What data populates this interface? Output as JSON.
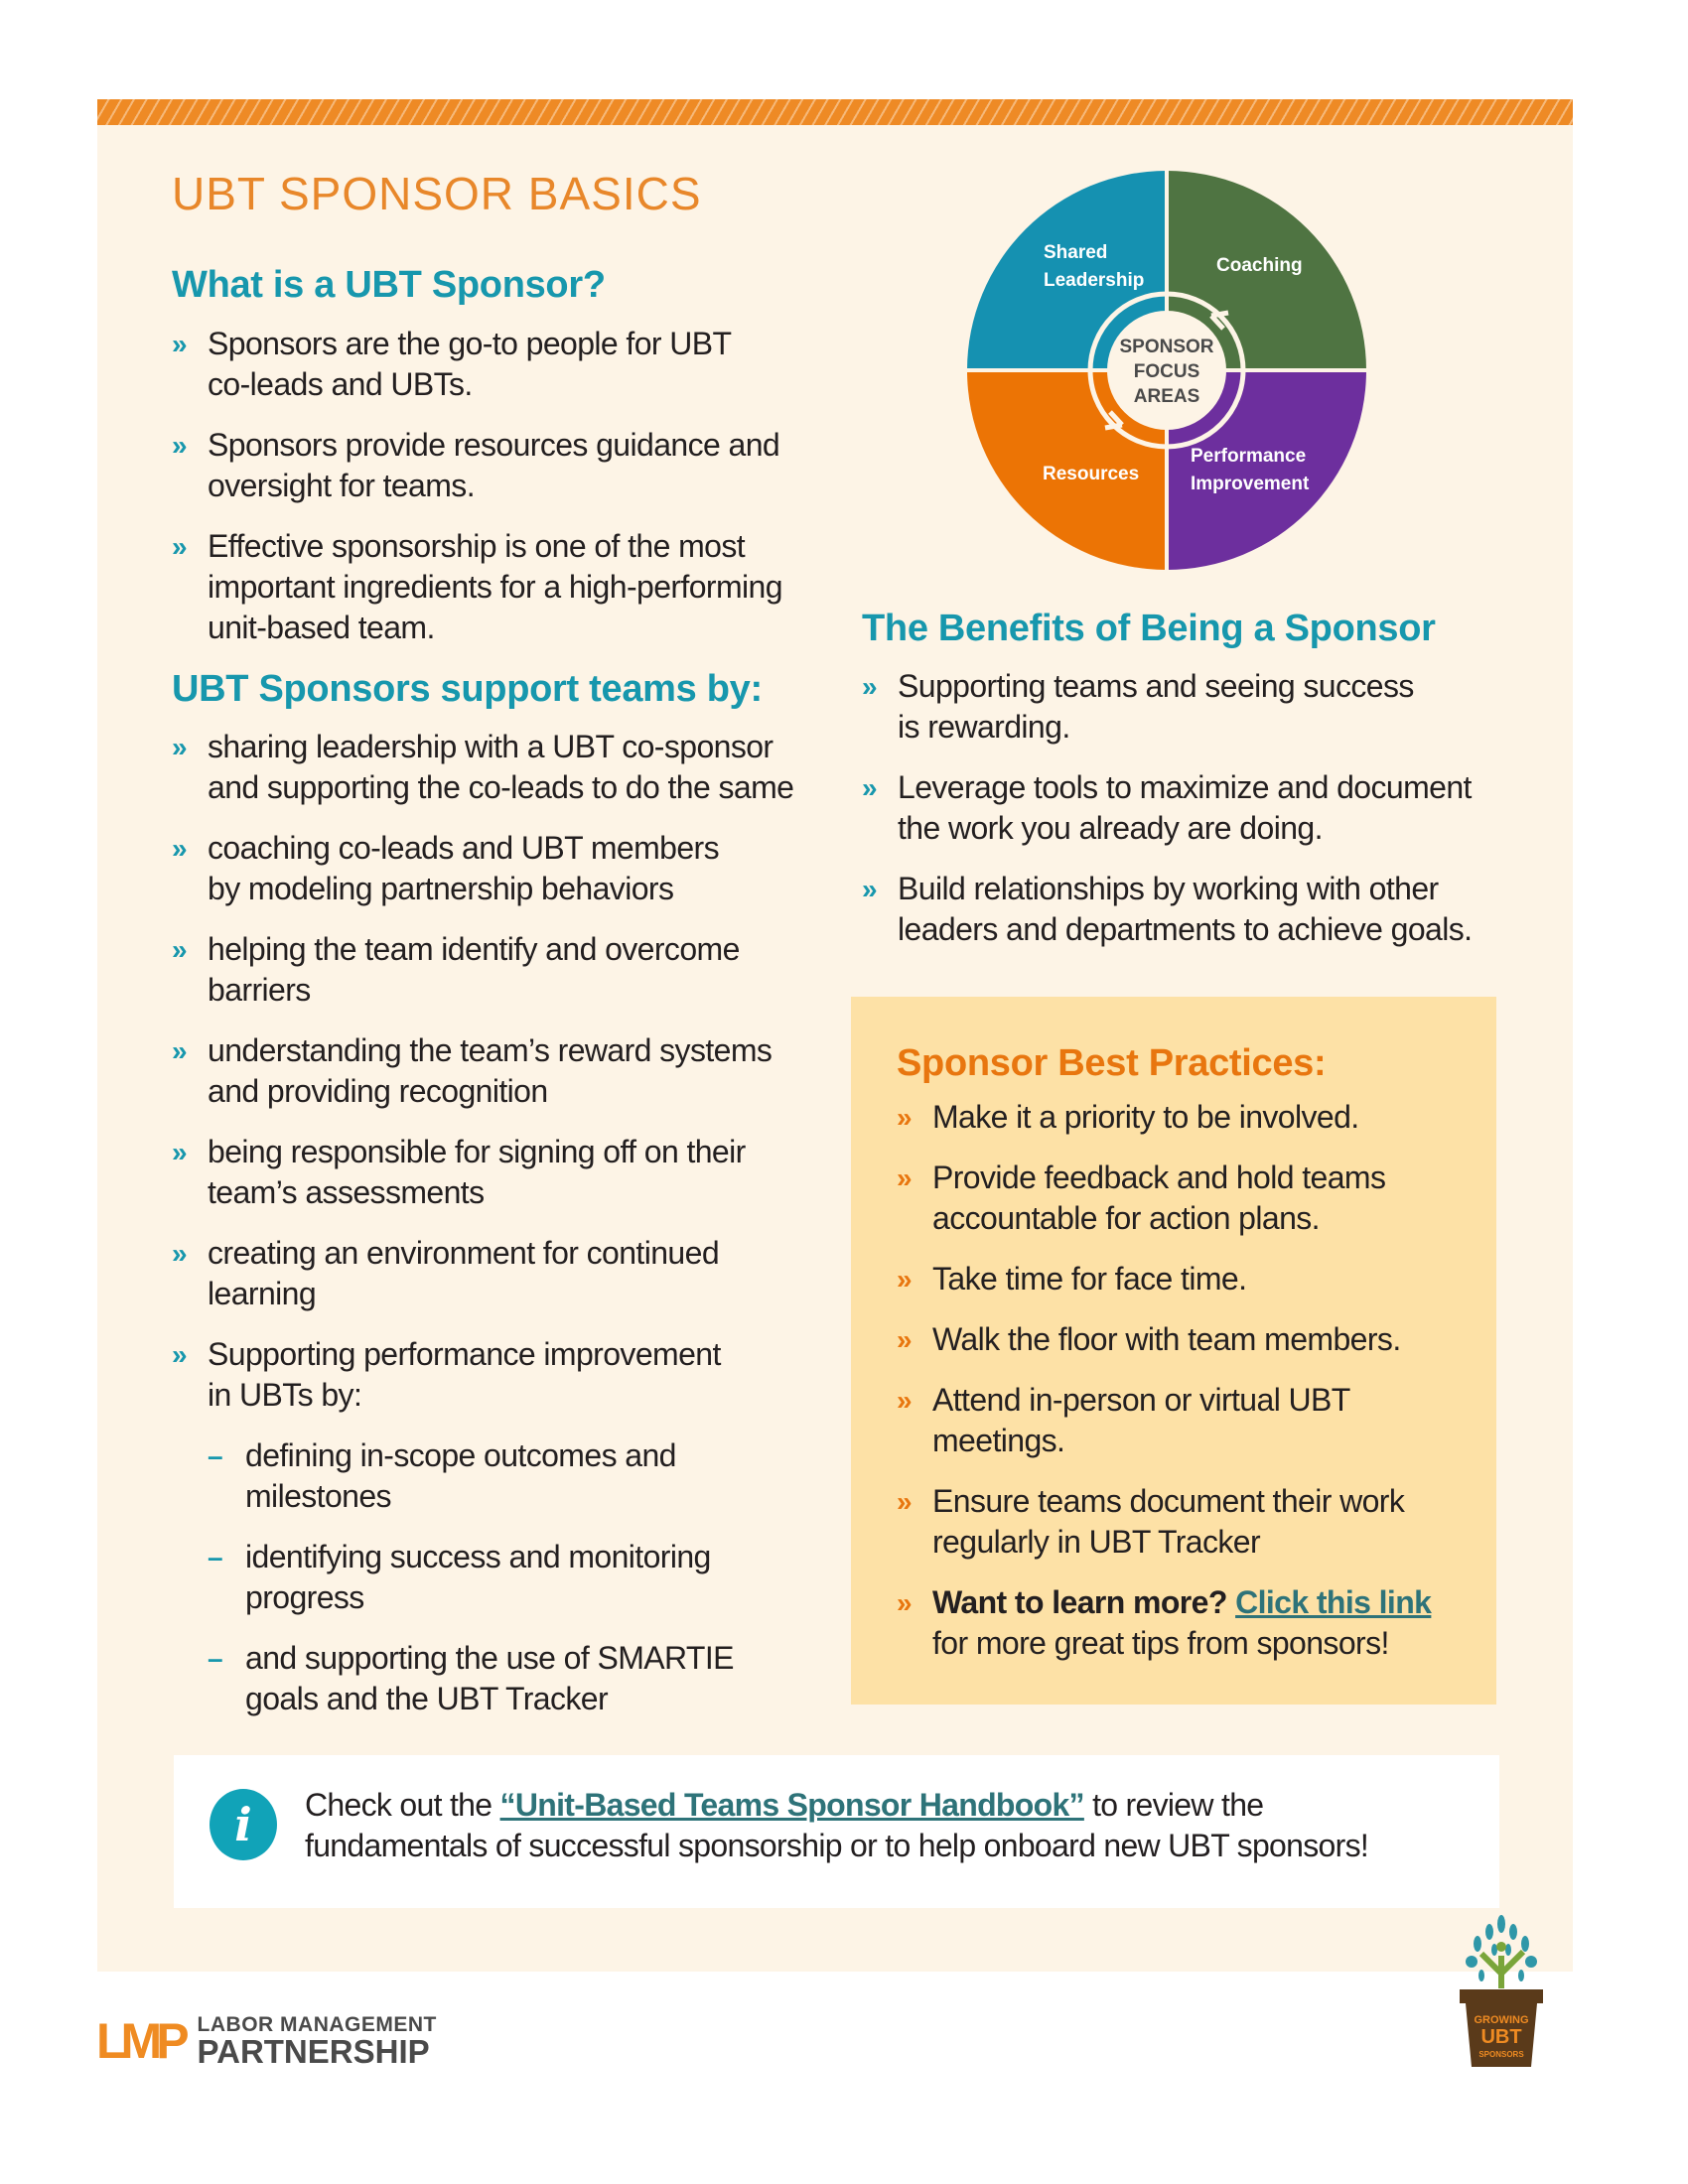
{
  "title": "UBT SPONSOR BASICS",
  "what": {
    "heading": "What is a UBT Sponsor?",
    "items": [
      "Sponsors are the go-to people for UBT\nco-leads and UBTs.",
      "Sponsors provide resources guidance and\noversight for teams.",
      "Effective sponsorship is one of the most\nimportant ingredients for a high-performing\nunit-based team."
    ]
  },
  "support": {
    "heading": "UBT Sponsors support teams by:",
    "items": [
      "sharing leadership with a UBT co-sponsor\nand supporting the co-leads to do the same",
      "coaching co-leads and UBT members\nby modeling partnership behaviors",
      "helping the team identify and overcome\nbarriers",
      "understanding the team’s reward systems\nand providing recognition",
      "being responsible for signing off on their\nteam’s assessments",
      "creating an environment for continued\nlearning",
      "Supporting performance improvement\nin UBTs by:"
    ],
    "sub_items": [
      "defining in-scope outcomes and\nmilestones",
      "identifying success and monitoring\nprogress",
      "and supporting the use of SMARTIE\ngoals and the UBT Tracker"
    ]
  },
  "focus_diagram": {
    "center": [
      "SPONSOR",
      "FOCUS",
      "AREAS"
    ],
    "quadrants": [
      {
        "label": [
          "Shared",
          "Leadership"
        ],
        "color": "#1591b1"
      },
      {
        "label": [
          "Coaching"
        ],
        "color": "#4f7442"
      },
      {
        "label": [
          "Resources"
        ],
        "color": "#ec7405"
      },
      {
        "label": [
          "Performance",
          "Improvement"
        ],
        "color": "#6d2f9e"
      }
    ]
  },
  "benefits": {
    "heading": "The Benefits of Being a Sponsor",
    "items": [
      "Supporting teams and seeing success\nis rewarding.",
      "Leverage tools to maximize and document\nthe work you already are doing.",
      "Build relationships by working with other\nleaders and departments to achieve goals."
    ]
  },
  "best_practices": {
    "heading": "Sponsor Best Practices:",
    "items": [
      "Make it a priority to be involved.",
      "Provide feedback and hold teams\naccountable for action plans.",
      "Take time for face time.",
      "Walk the floor with team members.",
      "Attend in-person or virtual UBT\nmeetings.",
      "Ensure teams document their work\nregularly in UBT Tracker"
    ],
    "learn_more_bold": "Want to learn more?",
    "learn_more_link": "Click this link",
    "learn_more_rest": "for more great tips from sponsors!"
  },
  "info": {
    "icon": "info-icon",
    "pre": "Check out the ",
    "link": "“Unit-Based Teams Sponsor Handbook”",
    "post": " to review the",
    "line2": "fundamentals of successful sponsorship or to help onboard new UBT sponsors!"
  },
  "footer": {
    "logo_mark": "LMP",
    "logo_line1": "LABOR MANAGEMENT",
    "logo_line2": "PARTNERSHIP",
    "badge_text": [
      "GROWING",
      "UBT",
      "SPONSORS"
    ]
  },
  "colors": {
    "orange": "#e8872a",
    "teal": "#1797ad",
    "cream": "#fdf4e6",
    "box": "#fde1a6"
  }
}
